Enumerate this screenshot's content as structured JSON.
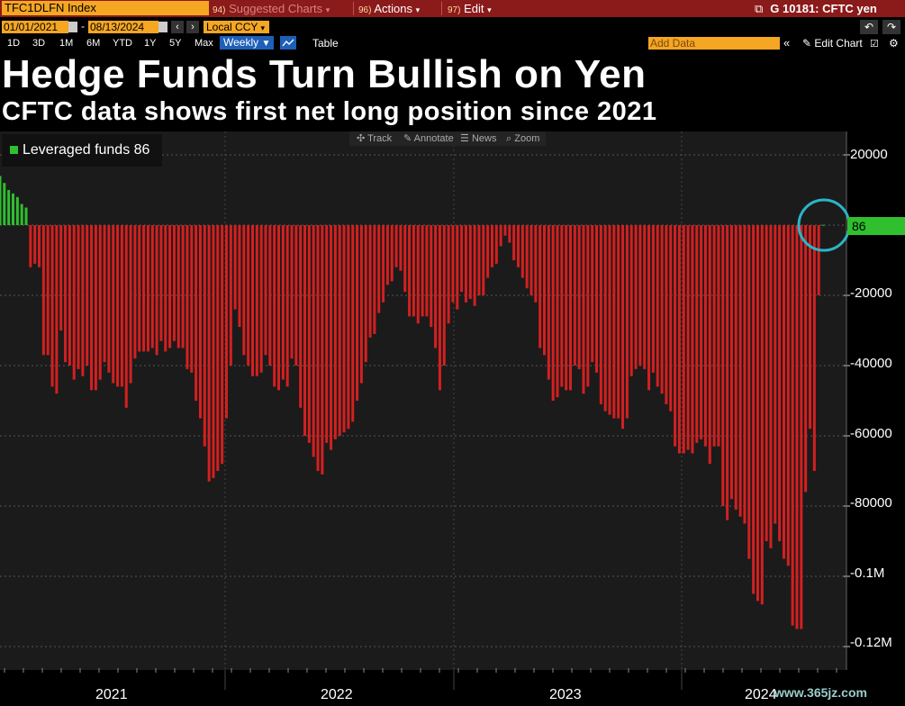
{
  "toolbar": {
    "ticker": "TFC1DLFN Index",
    "suggested_num": "94)",
    "suggested_label": "Suggested Charts",
    "actions_num": "96)",
    "actions_label": "Actions",
    "edit_num": "97)",
    "edit_label": "Edit",
    "window_title": "G 10181: CFTC yen"
  },
  "controls": {
    "start_date": "01/01/2021",
    "end_date": "08/13/2024",
    "date_separator": "-",
    "currency": "Local CCY",
    "periods": [
      "1D",
      "3D",
      "1M",
      "6M",
      "YTD",
      "1Y",
      "5Y",
      "Max"
    ],
    "frequency": "Weekly",
    "table_label": "Table",
    "add_data_placeholder": "Add Data",
    "edit_chart_label": "Edit Chart"
  },
  "headline": "Hedge Funds Turn Bullish on Yen",
  "subheadline": "CFTC data shows first net long position since 2021",
  "chart_toolbar": {
    "track": "Track",
    "annotate": "Annotate",
    "news": "News",
    "zoom": "Zoom"
  },
  "legend": {
    "label": "Leveraged funds 86",
    "color": "#2fbf2f"
  },
  "last_value_badge": "86",
  "watermark": "www.365jz.com",
  "colors": {
    "positive": "#2fbf2f",
    "negative": "#d42020",
    "highlight_circle": "#2ab5c8",
    "accent_orange": "#f5a623",
    "header_red": "#8b1a1a"
  },
  "chart_data": {
    "type": "bar",
    "y_tick_labels": [
      "20000",
      "-20000",
      "-40000",
      "-60000",
      "-80000",
      "-0.1M",
      "-0.12M"
    ],
    "y_tick_values": [
      20000,
      -20000,
      -40000,
      -60000,
      -80000,
      -100000,
      -120000
    ],
    "ylim": [
      -126000,
      26000
    ],
    "x_tick_labels": [
      "2021",
      "2022",
      "2023",
      "2024"
    ],
    "x_range": [
      "2021-01-05",
      "2024-08-13"
    ],
    "grid": true,
    "legend_position": "top-left",
    "series": [
      {
        "name": "Leveraged funds",
        "last_value": 86,
        "values": [
          14000,
          12000,
          10000,
          9000,
          8000,
          6000,
          5000,
          -12000,
          -11000,
          -12000,
          -37000,
          -37000,
          -46000,
          -48000,
          -30000,
          -39000,
          -40000,
          -44000,
          -41000,
          -43000,
          -40000,
          -47000,
          -47000,
          -44000,
          -39000,
          -42000,
          -45000,
          -46000,
          -46000,
          -52000,
          -45000,
          -38000,
          -36000,
          -36000,
          -36000,
          -35000,
          -37000,
          -33000,
          -36000,
          -35000,
          -33000,
          -35000,
          -35000,
          -41000,
          -42000,
          -50000,
          -55000,
          -63000,
          -73000,
          -72000,
          -70000,
          -68000,
          -55000,
          -40000,
          -24000,
          -29000,
          -37000,
          -40000,
          -43000,
          -43000,
          -42000,
          -37000,
          -40000,
          -46000,
          -47000,
          -44000,
          -46000,
          -38000,
          -40000,
          -52000,
          -60000,
          -62000,
          -66000,
          -70000,
          -71000,
          -62000,
          -64000,
          -61000,
          -60000,
          -59000,
          -58000,
          -56000,
          -50000,
          -45000,
          -39000,
          -32000,
          -31000,
          -25000,
          -22000,
          -17000,
          -16000,
          -12000,
          -13000,
          -19000,
          -26000,
          -26000,
          -28000,
          -26000,
          -26000,
          -29000,
          -35000,
          -47000,
          -40000,
          -28000,
          -22000,
          -24000,
          -19000,
          -22000,
          -21000,
          -23000,
          -20000,
          -20000,
          -15000,
          -12000,
          -11000,
          -6000,
          -3000,
          -5000,
          -10000,
          -12000,
          -15000,
          -18000,
          -20000,
          -22000,
          -35000,
          -37000,
          -44000,
          -50000,
          -49000,
          -46000,
          -47000,
          -47000,
          -40000,
          -41000,
          -48000,
          -46000,
          -39000,
          -42000,
          -51000,
          -53000,
          -54000,
          -55000,
          -55000,
          -58000,
          -55000,
          -43000,
          -41000,
          -40000,
          -41000,
          -47000,
          -42000,
          -46000,
          -48000,
          -51000,
          -53000,
          -63000,
          -65000,
          -65000,
          -64000,
          -65000,
          -62000,
          -61000,
          -63000,
          -68000,
          -63000,
          -63000,
          -80000,
          -84000,
          -78000,
          -81000,
          -83000,
          -85000,
          -95000,
          -105000,
          -107000,
          -108000,
          -90000,
          -92000,
          -85000,
          -90000,
          -95000,
          -97000,
          -114000,
          -115000,
          -115000,
          -76000,
          -58000,
          -70000,
          -20000,
          86
        ]
      }
    ]
  }
}
